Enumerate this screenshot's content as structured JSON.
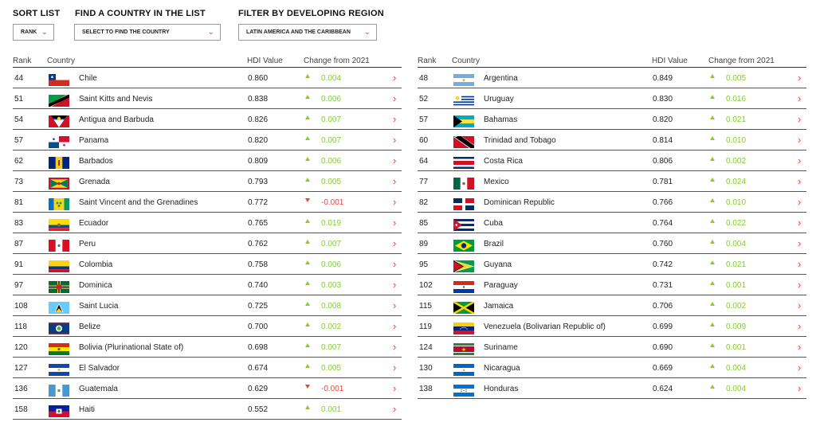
{
  "controls": {
    "sort": {
      "label": "SORT LIST",
      "value": "RANK"
    },
    "find": {
      "label": "FIND A COUNTRY IN THE LIST",
      "value": "SELECT TO FIND THE COUNTRY"
    },
    "filter": {
      "label": "FILTER BY DEVELOPING REGION",
      "value": "LATIN AMERICA AND THE CARIBBEAN"
    }
  },
  "columns": {
    "rank": "Rank",
    "country": "Country",
    "hdi": "HDI Value",
    "change": "Change from 2021"
  },
  "left": [
    {
      "rank": "44",
      "country": "Chile",
      "hdi": "0.860",
      "change": "0.004",
      "dir": "up",
      "flag": "chile"
    },
    {
      "rank": "51",
      "country": "Saint Kitts and Nevis",
      "hdi": "0.838",
      "change": "0.006",
      "dir": "up",
      "flag": "saint-kitts-and-nevis"
    },
    {
      "rank": "54",
      "country": "Antigua and Barbuda",
      "hdi": "0.826",
      "change": "0.007",
      "dir": "up",
      "flag": "antigua-and-barbuda"
    },
    {
      "rank": "57",
      "country": "Panama",
      "hdi": "0.820",
      "change": "0.007",
      "dir": "up",
      "flag": "panama"
    },
    {
      "rank": "62",
      "country": "Barbados",
      "hdi": "0.809",
      "change": "0.006",
      "dir": "up",
      "flag": "barbados"
    },
    {
      "rank": "73",
      "country": "Grenada",
      "hdi": "0.793",
      "change": "0.005",
      "dir": "up",
      "flag": "grenada"
    },
    {
      "rank": "81",
      "country": "Saint Vincent and the Grenadines",
      "hdi": "0.772",
      "change": "-0.001",
      "dir": "down",
      "flag": "saint-vincent"
    },
    {
      "rank": "83",
      "country": "Ecuador",
      "hdi": "0.765",
      "change": "0.019",
      "dir": "up",
      "flag": "ecuador"
    },
    {
      "rank": "87",
      "country": "Peru",
      "hdi": "0.762",
      "change": "0.007",
      "dir": "up",
      "flag": "peru"
    },
    {
      "rank": "91",
      "country": "Colombia",
      "hdi": "0.758",
      "change": "0.006",
      "dir": "up",
      "flag": "colombia"
    },
    {
      "rank": "97",
      "country": "Dominica",
      "hdi": "0.740",
      "change": "0.003",
      "dir": "up",
      "flag": "dominica"
    },
    {
      "rank": "108",
      "country": "Saint Lucia",
      "hdi": "0.725",
      "change": "0.008",
      "dir": "up",
      "flag": "saint-lucia"
    },
    {
      "rank": "118",
      "country": "Belize",
      "hdi": "0.700",
      "change": "0.002",
      "dir": "up",
      "flag": "belize"
    },
    {
      "rank": "120",
      "country": "Bolivia (Plurinational State of)",
      "hdi": "0.698",
      "change": "0.007",
      "dir": "up",
      "flag": "bolivia"
    },
    {
      "rank": "127",
      "country": "El Salvador",
      "hdi": "0.674",
      "change": "0.005",
      "dir": "up",
      "flag": "el-salvador"
    },
    {
      "rank": "136",
      "country": "Guatemala",
      "hdi": "0.629",
      "change": "-0.001",
      "dir": "down",
      "flag": "guatemala"
    },
    {
      "rank": "158",
      "country": "Haiti",
      "hdi": "0.552",
      "change": "0.001",
      "dir": "up",
      "flag": "haiti"
    }
  ],
  "right": [
    {
      "rank": "48",
      "country": "Argentina",
      "hdi": "0.849",
      "change": "0.005",
      "dir": "up",
      "flag": "argentina"
    },
    {
      "rank": "52",
      "country": "Uruguay",
      "hdi": "0.830",
      "change": "0.016",
      "dir": "up",
      "flag": "uruguay"
    },
    {
      "rank": "57",
      "country": "Bahamas",
      "hdi": "0.820",
      "change": "0.021",
      "dir": "up",
      "flag": "bahamas"
    },
    {
      "rank": "60",
      "country": "Trinidad and Tobago",
      "hdi": "0.814",
      "change": "0.010",
      "dir": "up",
      "flag": "trinidad-and-tobago"
    },
    {
      "rank": "64",
      "country": "Costa Rica",
      "hdi": "0.806",
      "change": "0.002",
      "dir": "up",
      "flag": "costa-rica"
    },
    {
      "rank": "77",
      "country": "Mexico",
      "hdi": "0.781",
      "change": "0.024",
      "dir": "up",
      "flag": "mexico"
    },
    {
      "rank": "82",
      "country": "Dominican Republic",
      "hdi": "0.766",
      "change": "0.010",
      "dir": "up",
      "flag": "dominican-republic"
    },
    {
      "rank": "85",
      "country": "Cuba",
      "hdi": "0.764",
      "change": "0.022",
      "dir": "up",
      "flag": "cuba"
    },
    {
      "rank": "89",
      "country": "Brazil",
      "hdi": "0.760",
      "change": "0.004",
      "dir": "up",
      "flag": "brazil"
    },
    {
      "rank": "95",
      "country": "Guyana",
      "hdi": "0.742",
      "change": "0.021",
      "dir": "up",
      "flag": "guyana"
    },
    {
      "rank": "102",
      "country": "Paraguay",
      "hdi": "0.731",
      "change": "0.001",
      "dir": "up",
      "flag": "paraguay"
    },
    {
      "rank": "115",
      "country": "Jamaica",
      "hdi": "0.706",
      "change": "0.002",
      "dir": "up",
      "flag": "jamaica"
    },
    {
      "rank": "119",
      "country": "Venezuela (Bolivarian Republic of)",
      "hdi": "0.699",
      "change": "0.009",
      "dir": "up",
      "flag": "venezuela"
    },
    {
      "rank": "124",
      "country": "Suriname",
      "hdi": "0.690",
      "change": "0.001",
      "dir": "up",
      "flag": "suriname"
    },
    {
      "rank": "130",
      "country": "Nicaragua",
      "hdi": "0.669",
      "change": "0.004",
      "dir": "up",
      "flag": "nicaragua"
    },
    {
      "rank": "138",
      "country": "Honduras",
      "hdi": "0.624",
      "change": "0.004",
      "dir": "up",
      "flag": "honduras"
    }
  ],
  "colors": {
    "up": "#7ed321",
    "down": "#e8453c",
    "chevron": "#e8453c"
  }
}
